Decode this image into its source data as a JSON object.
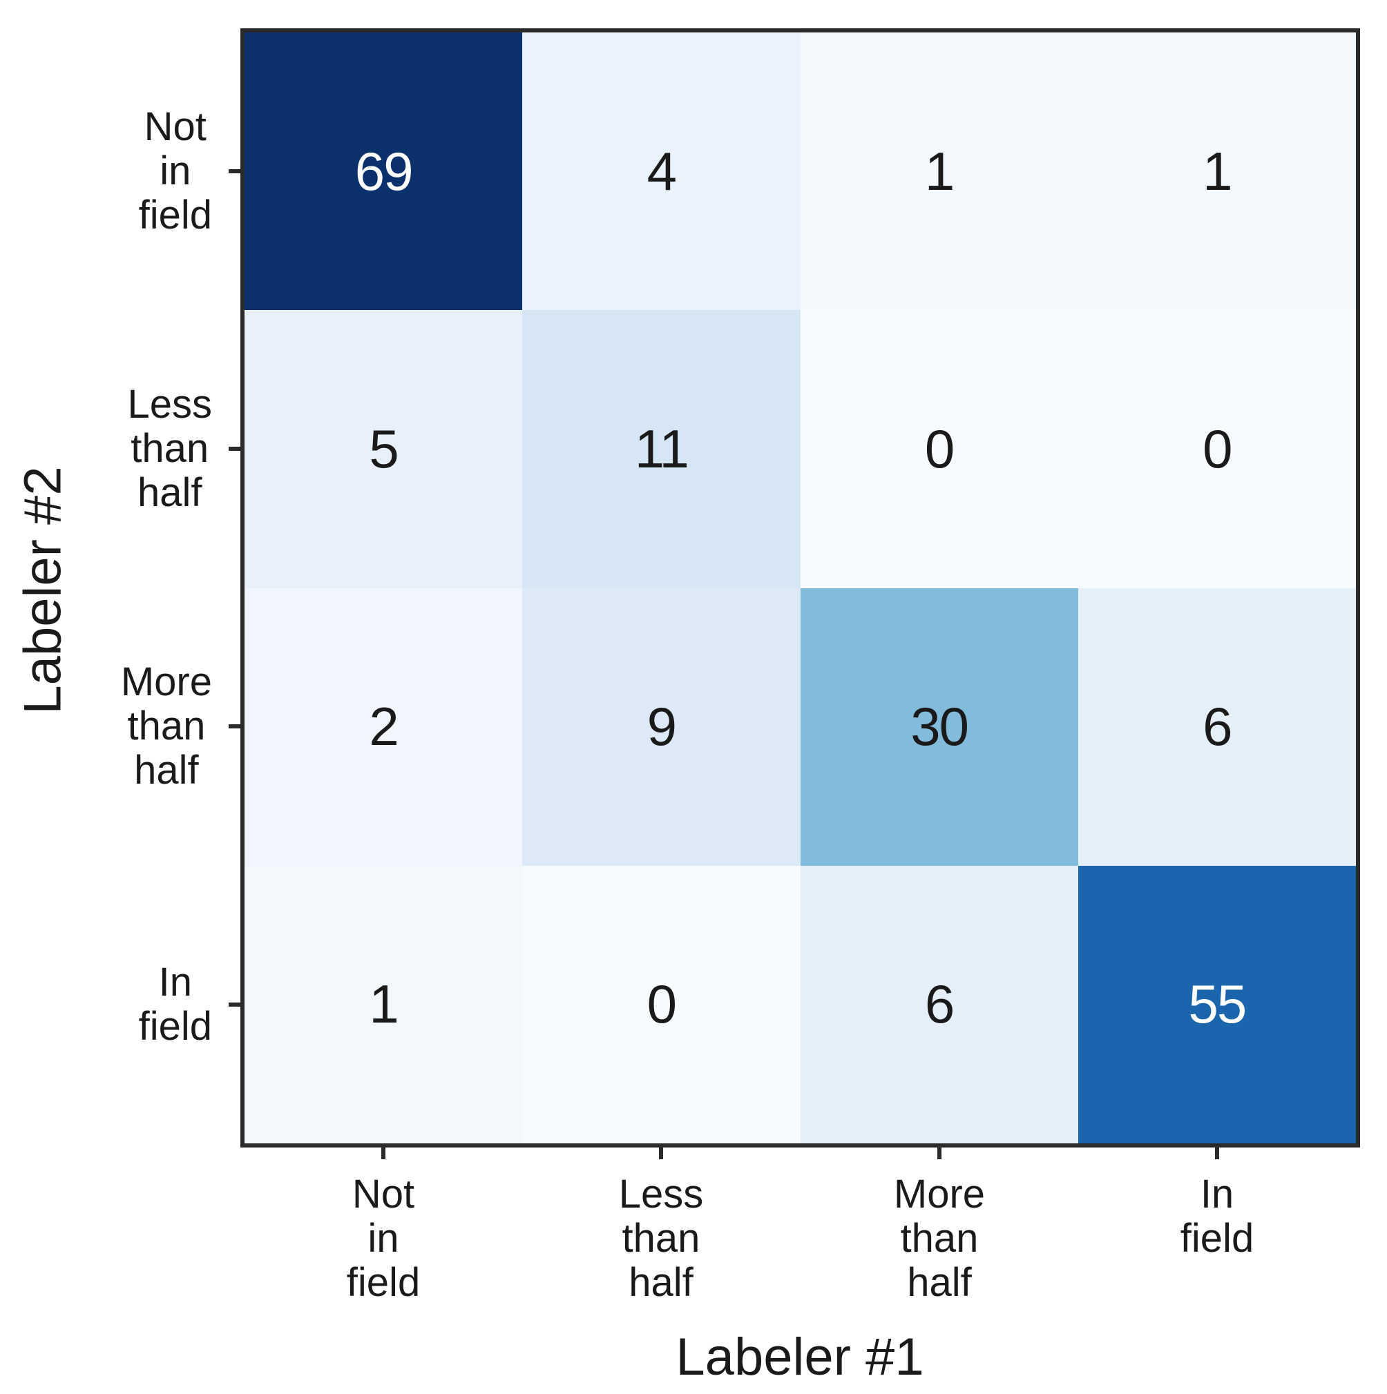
{
  "figure": {
    "background": "#ffffff",
    "axis_color": "#2a2a2a",
    "text_color": "#1a1a1a"
  },
  "chart_data": {
    "type": "heatmap",
    "title": "",
    "xlabel": "Labeler #1",
    "ylabel": "Labeler #2",
    "categories": [
      "Not in field",
      "Less than half",
      "More than half",
      "In field"
    ],
    "matrix_rows_top_to_bottom": [
      [
        69,
        4,
        1,
        1
      ],
      [
        5,
        11,
        0,
        0
      ],
      [
        2,
        9,
        30,
        6
      ],
      [
        1,
        0,
        6,
        55
      ]
    ],
    "colormap": "Blues",
    "value_range": [
      0,
      69
    ],
    "grid": false,
    "legend": "none"
  },
  "x_axis": {
    "label": "Labeler #1",
    "tick_labels": [
      "Not\nin\nfield",
      "Less\nthan\nhalf",
      "More\nthan\nhalf",
      "In\nfield"
    ]
  },
  "y_axis": {
    "label": "Labeler #2",
    "tick_labels": [
      "Not\nin\nfield",
      "Less\nthan\nhalf",
      "More\nthan\nhalf",
      "In\nfield"
    ]
  },
  "cells": [
    [
      {
        "v": "69",
        "bg": "#0a316b",
        "fg": "#ffffff"
      },
      {
        "v": "4",
        "bg": "#eaf2fb",
        "fg": "#1a1a1a"
      },
      {
        "v": "1",
        "bg": "#f3f8fd",
        "fg": "#1a1a1a"
      },
      {
        "v": "1",
        "bg": "#f3f8fd",
        "fg": "#1a1a1a"
      }
    ],
    [
      {
        "v": "5",
        "bg": "#e8f1fa",
        "fg": "#1a1a1a"
      },
      {
        "v": "11",
        "bg": "#d7e6f4",
        "fg": "#1a1a1a"
      },
      {
        "v": "0",
        "bg": "#f7fbff",
        "fg": "#1a1a1a"
      },
      {
        "v": "0",
        "bg": "#f7fbff",
        "fg": "#1a1a1a"
      }
    ],
    [
      {
        "v": "2",
        "bg": "#f0f6fc",
        "fg": "#1a1a1a"
      },
      {
        "v": "9",
        "bg": "#dde9f6",
        "fg": "#1a1a1a"
      },
      {
        "v": "30",
        "bg": "#83bbdb",
        "fg": "#1a1a1a"
      },
      {
        "v": "6",
        "bg": "#e5eff9",
        "fg": "#1a1a1a"
      }
    ],
    [
      {
        "v": "1",
        "bg": "#f3f8fd",
        "fg": "#1a1a1a"
      },
      {
        "v": "0",
        "bg": "#f7fbff",
        "fg": "#1a1a1a"
      },
      {
        "v": "6",
        "bg": "#e5eff9",
        "fg": "#1a1a1a"
      },
      {
        "v": "55",
        "bg": "#1a65ac",
        "fg": "#ffffff"
      }
    ]
  ]
}
